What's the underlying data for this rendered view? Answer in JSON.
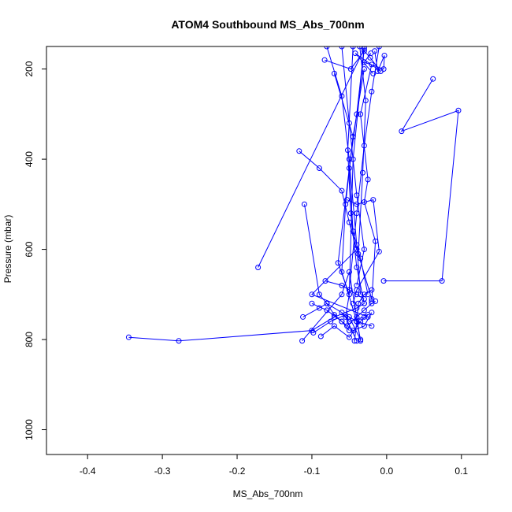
{
  "chart_data": {
    "type": "line",
    "title": "ATOM4 Southbound MS_Abs_700nm",
    "xlabel": "MS_Abs_700nm",
    "ylabel": "Pressure (mbar)",
    "xlim": [
      -0.455,
      0.135
    ],
    "ylim": [
      1055,
      150
    ],
    "y_reversed": true,
    "x_ticks": [
      -0.4,
      -0.3,
      -0.2,
      -0.1,
      0.0,
      0.1
    ],
    "x_tick_labels": [
      "-0.4",
      "-0.3",
      "-0.2",
      "-0.1",
      "0.0",
      "0.1"
    ],
    "y_ticks": [
      200,
      400,
      600,
      800,
      1000
    ],
    "y_tick_labels": [
      "200",
      "400",
      "600",
      "800",
      "1000"
    ],
    "grid": false,
    "legend": "none",
    "series_color": "#0000ff",
    "marker": "open-circle",
    "series": [
      {
        "x": [
          -0.083,
          -0.048,
          -0.03,
          -0.022,
          -0.008,
          -0.042,
          -0.018
        ],
        "y": [
          180,
          200,
          160,
          175,
          205,
          165,
          210
        ]
      },
      {
        "x": [
          -0.016,
          -0.012,
          -0.003,
          -0.004,
          -0.03,
          -0.021
        ],
        "y": [
          160,
          205,
          170,
          200,
          185,
          165
        ]
      },
      {
        "x": [
          0.062,
          0.02,
          0.096,
          0.074,
          -0.004
        ],
        "y": [
          222,
          338,
          292,
          670,
          670
        ]
      },
      {
        "x": [
          -0.117,
          -0.09,
          -0.06,
          -0.05,
          -0.04,
          -0.1,
          -0.025
        ],
        "y": [
          382,
          420,
          470,
          540,
          600,
          700,
          750
        ]
      },
      {
        "x": [
          -0.03,
          -0.045,
          -0.055,
          -0.06,
          -0.04,
          -0.035,
          -0.05
        ],
        "y": [
          200,
          350,
          500,
          650,
          760,
          800,
          750
        ]
      },
      {
        "x": [
          -0.02,
          -0.035,
          -0.025,
          -0.03,
          -0.015,
          -0.02
        ],
        "y": [
          190,
          300,
          445,
          495,
          582,
          715
        ]
      },
      {
        "x": [
          -0.053,
          -0.04,
          -0.018,
          -0.01,
          -0.04,
          -0.045
        ],
        "y": [
          490,
          500,
          490,
          605,
          690,
          720
        ]
      },
      {
        "x": [
          -0.07,
          -0.045,
          -0.065,
          -0.05,
          -0.055,
          -0.04
        ],
        "y": [
          210,
          350,
          630,
          700,
          750,
          803
        ]
      },
      {
        "x": [
          -0.11,
          -0.09,
          -0.08,
          -0.07,
          -0.06,
          -0.05
        ],
        "y": [
          500,
          700,
          720,
          745,
          760,
          780
        ]
      },
      {
        "x": [
          -0.082,
          -0.06,
          -0.05,
          -0.04,
          -0.03
        ],
        "y": [
          670,
          680,
          690,
          700,
          710
        ]
      },
      {
        "x": [
          -0.112,
          -0.09,
          -0.08,
          -0.06,
          -0.05,
          -0.03
        ],
        "y": [
          750,
          730,
          720,
          740,
          760,
          750
        ]
      },
      {
        "x": [
          -0.1,
          -0.08,
          -0.06,
          -0.045,
          -0.03,
          -0.02
        ],
        "y": [
          720,
          735,
          760,
          780,
          770,
          740
        ]
      },
      {
        "x": [
          -0.098,
          -0.075,
          -0.055,
          -0.04,
          -0.02
        ],
        "y": [
          785,
          760,
          745,
          760,
          770
        ]
      },
      {
        "x": [
          -0.088,
          -0.07,
          -0.05,
          -0.035,
          -0.025
        ],
        "y": [
          793,
          770,
          795,
          760,
          745
        ]
      },
      {
        "x": [
          -0.113,
          -0.06,
          -0.05,
          -0.035
        ],
        "y": [
          803,
          700,
          650,
          803
        ]
      },
      {
        "x": [
          -0.043,
          -0.04,
          -0.038,
          -0.03,
          -0.02
        ],
        "y": [
          803,
          760,
          720,
          700,
          690
        ]
      },
      {
        "x": [
          -0.053,
          -0.04,
          -0.03,
          -0.02,
          -0.015
        ],
        "y": [
          770,
          750,
          735,
          720,
          715
        ]
      },
      {
        "x": [
          -0.345,
          -0.278,
          -0.1,
          -0.07,
          -0.04,
          -0.03
        ],
        "y": [
          795,
          803,
          780,
          750,
          730,
          720
        ]
      },
      {
        "x": [
          -0.172,
          -0.03,
          -0.045,
          -0.05
        ],
        "y": [
          640,
          155,
          400,
          700
        ]
      },
      {
        "x": [
          -0.03,
          -0.04,
          -0.05,
          -0.045,
          -0.035,
          -0.025
        ],
        "y": [
          150,
          300,
          420,
          560,
          620,
          700
        ]
      },
      {
        "x": [
          -0.06,
          -0.05,
          -0.04,
          -0.03,
          -0.04
        ],
        "y": [
          150,
          320,
          480,
          600,
          680
        ]
      },
      {
        "x": [
          -0.045,
          -0.052,
          -0.048,
          -0.04,
          -0.03
        ],
        "y": [
          150,
          380,
          520,
          640,
          720
        ]
      },
      {
        "x": [
          -0.01,
          -0.02,
          -0.03,
          -0.04,
          -0.05
        ],
        "y": [
          150,
          250,
          370,
          520,
          690
        ]
      },
      {
        "x": [
          -0.08,
          -0.06,
          -0.05,
          -0.04,
          -0.035
        ],
        "y": [
          150,
          260,
          400,
          590,
          700
        ]
      },
      {
        "x": [
          -0.036,
          -0.028,
          -0.032,
          -0.038,
          -0.02
        ],
        "y": [
          150,
          270,
          430,
          610,
          710
        ]
      }
    ]
  }
}
